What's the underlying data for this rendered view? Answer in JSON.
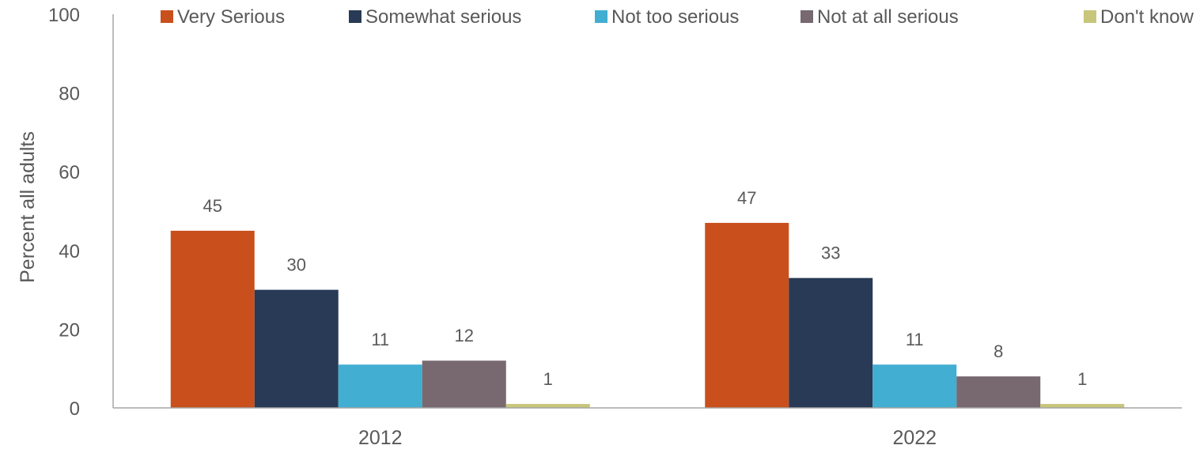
{
  "chart_data": {
    "type": "bar",
    "categories": [
      "2012",
      "2022"
    ],
    "series": [
      {
        "name": "Very Serious",
        "color": "#C9501C",
        "values": [
          45,
          47
        ]
      },
      {
        "name": "Somewhat serious",
        "color": "#283A55",
        "values": [
          30,
          33
        ]
      },
      {
        "name": "Not too serious",
        "color": "#41AED2",
        "values": [
          11,
          11
        ]
      },
      {
        "name": "Not at all serious",
        "color": "#77696F",
        "values": [
          12,
          8
        ]
      },
      {
        "name": "Don't know",
        "color": "#C8C67A",
        "values": [
          1,
          1
        ]
      }
    ],
    "ylabel": "Percent all adults",
    "xlabel": "",
    "ylim": [
      0,
      100
    ],
    "yticks": [
      0,
      20,
      40,
      60,
      80,
      100
    ],
    "grid": false,
    "legend_position": "top",
    "data_labels": true
  }
}
